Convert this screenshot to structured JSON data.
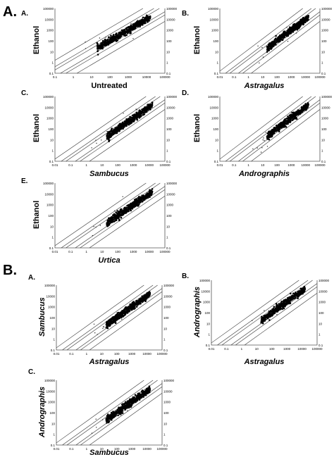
{
  "sections": [
    {
      "label": "A."
    },
    {
      "label": "B."
    }
  ],
  "chart_data": [
    {
      "type": "scatter",
      "panel": "A.",
      "xlabel": "Untreated",
      "ylabel": "Ethanol",
      "log_scale": true,
      "xlim": [
        0.1,
        100000
      ],
      "ylim": [
        0.1,
        100000
      ],
      "x_ticks": [
        "0.1",
        "1",
        "10",
        "100",
        "1000",
        "10000",
        "100000"
      ],
      "y_ticks": [
        "0.1",
        "1",
        "10",
        "100",
        "1000",
        "10000",
        "100000"
      ]
    },
    {
      "type": "scatter",
      "panel": "B.",
      "xlabel": "Astragalus",
      "ylabel": "Ethanol",
      "log_scale": true,
      "xlim": [
        0.01,
        100000
      ],
      "ylim": [
        0.1,
        100000
      ],
      "x_ticks": [
        "0.01",
        "0.1",
        "1",
        "10",
        "100",
        "1000",
        "10000",
        "100000"
      ],
      "y_ticks": [
        "0.1",
        "1",
        "10",
        "100",
        "1000",
        "10000",
        "100000"
      ]
    },
    {
      "type": "scatter",
      "panel": "C.",
      "xlabel": "Sambucus",
      "ylabel": "Ethanol",
      "log_scale": true,
      "xlim": [
        0.01,
        100000
      ],
      "ylim": [
        0.1,
        100000
      ],
      "x_ticks": [
        "0.01",
        "0.1",
        "1",
        "10",
        "100",
        "1000",
        "10000",
        "100000"
      ],
      "y_ticks": [
        "0.1",
        "1",
        "10",
        "100",
        "1000",
        "10000",
        "100000"
      ]
    },
    {
      "type": "scatter",
      "panel": "D.",
      "xlabel": "Andrographis",
      "ylabel": "Ethanol",
      "log_scale": true,
      "xlim": [
        0.01,
        100000
      ],
      "ylim": [
        0.1,
        100000
      ],
      "x_ticks": [
        "0.01",
        "0.1",
        "1",
        "10",
        "100",
        "1000",
        "10000",
        "100000"
      ],
      "y_ticks": [
        "0.1",
        "1",
        "10",
        "100",
        "1000",
        "10000",
        "100000"
      ]
    },
    {
      "type": "scatter",
      "panel": "E.",
      "xlabel": "Urtica",
      "ylabel": "Ethanol",
      "log_scale": true,
      "xlim": [
        0.01,
        100000
      ],
      "ylim": [
        0.1,
        100000
      ],
      "x_ticks": [
        "0.01",
        "0.1",
        "1",
        "10",
        "100",
        "1000",
        "10000",
        "100000"
      ],
      "y_ticks": [
        "0.1",
        "1",
        "10",
        "100",
        "1000",
        "10000",
        "100000"
      ]
    },
    {
      "type": "scatter",
      "panel": "A.",
      "xlabel": "Astragalus",
      "ylabel": "Sambucus",
      "log_scale": true,
      "xlim": [
        0.01,
        100000
      ],
      "ylim": [
        0.1,
        100000
      ],
      "x_ticks": [
        "0.01",
        "0.1",
        "1",
        "10",
        "100",
        "1000",
        "10000",
        "100000"
      ],
      "y_ticks": [
        "0.1",
        "1",
        "10",
        "100",
        "1000",
        "10000",
        "100000"
      ]
    },
    {
      "type": "scatter",
      "panel": "B.",
      "xlabel": "Astragalus",
      "ylabel": "Andrographis",
      "log_scale": true,
      "xlim": [
        0.01,
        100000
      ],
      "ylim": [
        0.1,
        100000
      ],
      "x_ticks": [
        "0.01",
        "0.1",
        "1",
        "10",
        "100",
        "1000",
        "10000",
        "100000"
      ],
      "y_ticks": [
        "0.1",
        "1",
        "10",
        "100",
        "1000",
        "10000",
        "100000"
      ]
    },
    {
      "type": "scatter",
      "panel": "C.",
      "xlabel": "Sambucus",
      "ylabel": "Andrographis",
      "log_scale": true,
      "xlim": [
        0.01,
        100000
      ],
      "ylim": [
        0.1,
        100000
      ],
      "x_ticks": [
        "0.01",
        "0.1",
        "1",
        "10",
        "100",
        "1000",
        "10000",
        "100000"
      ],
      "y_ticks": [
        "0.1",
        "1",
        "10",
        "100",
        "1000",
        "10000",
        "100000"
      ]
    }
  ]
}
